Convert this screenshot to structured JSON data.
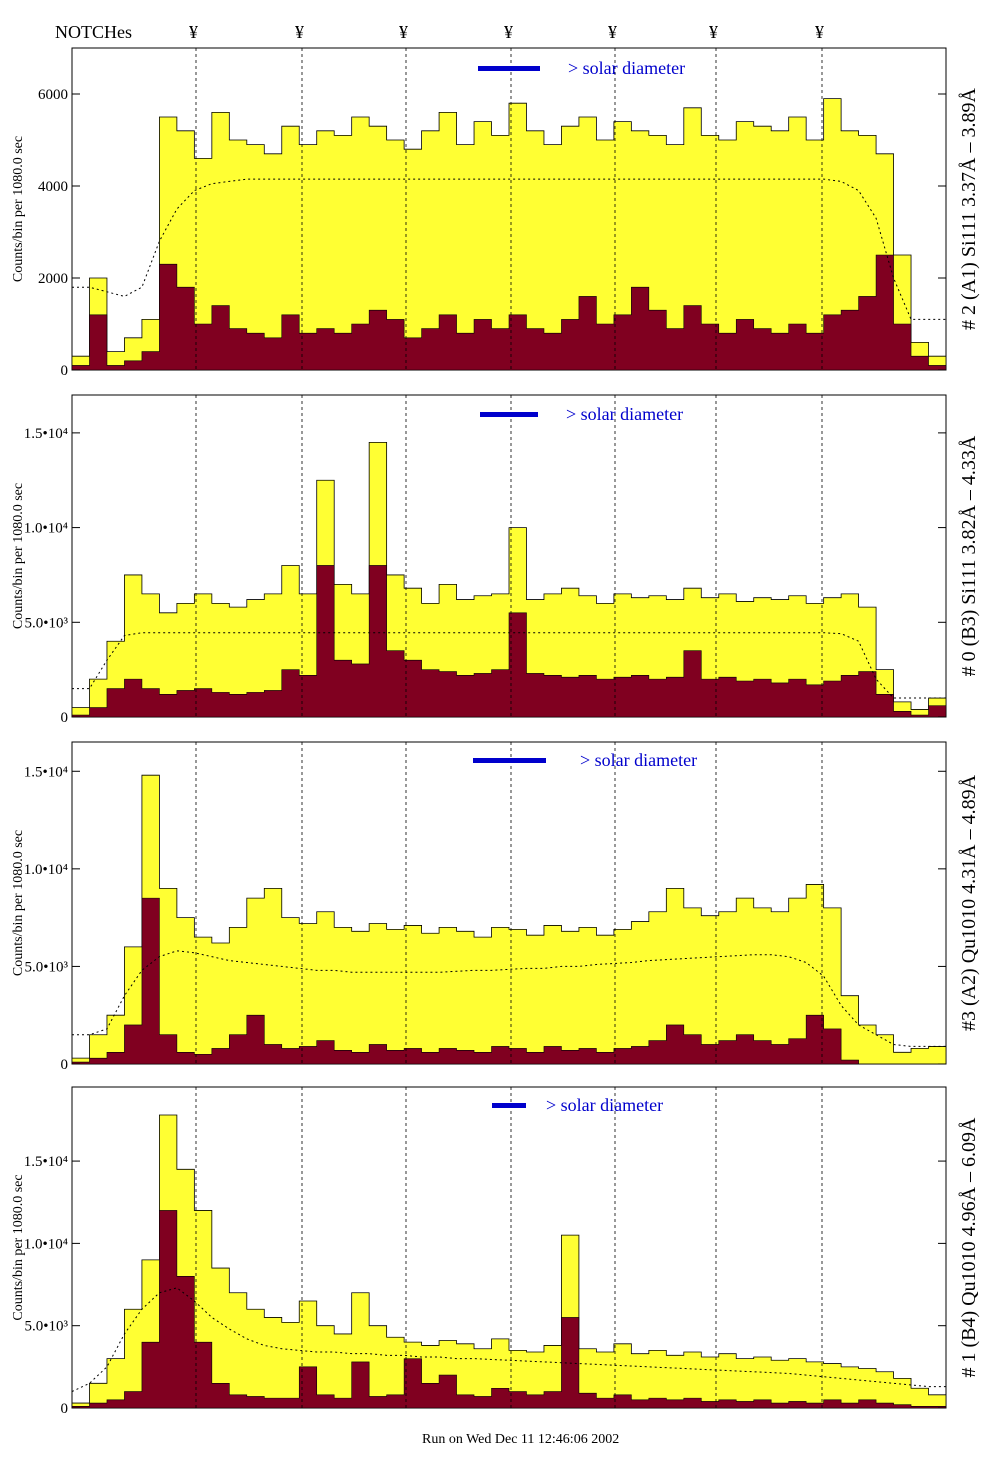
{
  "header": {
    "notch_label": "NOTCHes",
    "notch_symbol": "¥",
    "notch_count": 7
  },
  "footer": {
    "run_text": "Run on Wed Dec 11 12:46:06 2002"
  },
  "colors": {
    "fill_total": "#ffff33",
    "fill_sub": "#800020",
    "stroke": "#000000",
    "accent": "#0000cc"
  },
  "chart_data": [
    {
      "type": "area",
      "panel_title": "# 2 (A1) Si111  3.37Å – 3.89Å",
      "ylabel": "Counts/bin per   1080.0 sec",
      "solar_label": "> solar diameter",
      "yticks": [
        {
          "label": "0",
          "value": 0
        },
        {
          "label": "2000",
          "value": 2000
        },
        {
          "label": "4000",
          "value": 4000
        },
        {
          "label": "6000",
          "value": 6000
        }
      ],
      "ylim": [
        0,
        7000
      ],
      "x": [
        0,
        0.02,
        0.04,
        0.06,
        0.08,
        0.1,
        0.12,
        0.14,
        0.16,
        0.18,
        0.2,
        0.22,
        0.24,
        0.26,
        0.28,
        0.3,
        0.32,
        0.34,
        0.36,
        0.38,
        0.4,
        0.42,
        0.44,
        0.46,
        0.48,
        0.5,
        0.52,
        0.54,
        0.56,
        0.58,
        0.6,
        0.62,
        0.64,
        0.66,
        0.68,
        0.7,
        0.72,
        0.74,
        0.76,
        0.78,
        0.8,
        0.82,
        0.84,
        0.86,
        0.88,
        0.9,
        0.92,
        0.94,
        0.96,
        0.98,
        1.0
      ],
      "series": [
        {
          "name": "total",
          "values": [
            300,
            2000,
            400,
            700,
            1100,
            5500,
            5200,
            4600,
            5600,
            5000,
            4900,
            4700,
            5300,
            4900,
            5200,
            5100,
            5500,
            5300,
            5000,
            4800,
            5200,
            5600,
            4900,
            5400,
            5100,
            5800,
            5200,
            4900,
            5300,
            5500,
            5000,
            5400,
            5200,
            5100,
            4900,
            5700,
            5100,
            5000,
            5400,
            5300,
            5200,
            5500,
            5000,
            5900,
            5200,
            5100,
            4700,
            2500,
            600,
            300,
            0
          ]
        },
        {
          "name": "sub",
          "values": [
            100,
            1200,
            100,
            200,
            400,
            2300,
            1800,
            1000,
            1400,
            900,
            800,
            700,
            1200,
            800,
            900,
            800,
            1000,
            1300,
            1100,
            700,
            900,
            1200,
            800,
            1100,
            900,
            1200,
            900,
            800,
            1100,
            1600,
            1000,
            1200,
            1800,
            1300,
            900,
            1400,
            1000,
            800,
            1100,
            900,
            800,
            1000,
            800,
            1200,
            1300,
            1600,
            2500,
            1000,
            300,
            100,
            0
          ]
        },
        {
          "name": "model",
          "values": [
            1800,
            1800,
            1700,
            1600,
            1800,
            2800,
            3500,
            3900,
            4050,
            4100,
            4150,
            4150,
            4150,
            4150,
            4150,
            4150,
            4150,
            4150,
            4150,
            4150,
            4150,
            4150,
            4150,
            4150,
            4150,
            4150,
            4150,
            4150,
            4150,
            4150,
            4150,
            4150,
            4150,
            4150,
            4150,
            4150,
            4150,
            4150,
            4150,
            4150,
            4150,
            4150,
            4150,
            4150,
            4100,
            3900,
            3300,
            2000,
            1100,
            1100,
            1100
          ]
        }
      ]
    },
    {
      "type": "area",
      "panel_title": "# 0 (B3) Si111  3.82Å – 4.33Å",
      "ylabel": "Counts/bin per   1080.0 sec",
      "solar_label": "> solar diameter",
      "yticks": [
        {
          "label": "0",
          "value": 0
        },
        {
          "label": "5.0•10³",
          "value": 5000
        },
        {
          "label": "1.0•10⁴",
          "value": 10000
        },
        {
          "label": "1.5•10⁴",
          "value": 15000
        }
      ],
      "ylim": [
        0,
        17000
      ],
      "x": [
        0,
        0.02,
        0.04,
        0.06,
        0.08,
        0.1,
        0.12,
        0.14,
        0.16,
        0.18,
        0.2,
        0.22,
        0.24,
        0.26,
        0.28,
        0.3,
        0.32,
        0.34,
        0.36,
        0.38,
        0.4,
        0.42,
        0.44,
        0.46,
        0.48,
        0.5,
        0.52,
        0.54,
        0.56,
        0.58,
        0.6,
        0.62,
        0.64,
        0.66,
        0.68,
        0.7,
        0.72,
        0.74,
        0.76,
        0.78,
        0.8,
        0.82,
        0.84,
        0.86,
        0.88,
        0.9,
        0.92,
        0.94,
        0.96,
        0.98,
        1.0
      ],
      "series": [
        {
          "name": "total",
          "values": [
            500,
            2000,
            4000,
            7500,
            6500,
            5500,
            6000,
            6500,
            6000,
            5800,
            6200,
            6500,
            8000,
            6500,
            12500,
            7000,
            6500,
            14500,
            7500,
            6800,
            6000,
            7000,
            6200,
            6400,
            6500,
            10000,
            6200,
            6500,
            6800,
            6400,
            6000,
            6500,
            6300,
            6400,
            6200,
            6800,
            6300,
            6500,
            6100,
            6300,
            6200,
            6400,
            6000,
            6300,
            6500,
            5800,
            2500,
            800,
            400,
            1000,
            0
          ]
        },
        {
          "name": "sub",
          "values": [
            100,
            500,
            1500,
            2000,
            1500,
            1200,
            1400,
            1500,
            1300,
            1200,
            1300,
            1400,
            2500,
            2200,
            8000,
            3000,
            2800,
            8000,
            3500,
            3000,
            2500,
            2400,
            2200,
            2300,
            2500,
            5500,
            2300,
            2200,
            2100,
            2200,
            2000,
            2100,
            2200,
            2000,
            2100,
            3500,
            2000,
            2100,
            1900,
            2000,
            1800,
            2000,
            1700,
            1900,
            2200,
            2400,
            1200,
            300,
            100,
            600,
            0
          ]
        },
        {
          "name": "model",
          "values": [
            1500,
            1500,
            3000,
            4300,
            4450,
            4450,
            4450,
            4450,
            4450,
            4450,
            4450,
            4450,
            4450,
            4450,
            4450,
            4450,
            4450,
            4450,
            4450,
            4450,
            4450,
            4450,
            4450,
            4450,
            4450,
            4450,
            4450,
            4450,
            4450,
            4450,
            4450,
            4450,
            4450,
            4450,
            4450,
            4450,
            4450,
            4450,
            4450,
            4450,
            4450,
            4450,
            4450,
            4450,
            4400,
            4000,
            2000,
            1000,
            1000,
            1000,
            1000
          ]
        }
      ]
    },
    {
      "type": "area",
      "panel_title": "#3 (A2) Qu1010  4.31Å – 4.89Å",
      "ylabel": "Counts/bin per   1080.0 sec",
      "solar_label": "> solar diameter",
      "yticks": [
        {
          "label": "0",
          "value": 0
        },
        {
          "label": "5.0•10³",
          "value": 5000
        },
        {
          "label": "1.0•10⁴",
          "value": 10000
        },
        {
          "label": "1.5•10⁴",
          "value": 15000
        }
      ],
      "ylim": [
        0,
        16500
      ],
      "x": [
        0,
        0.02,
        0.04,
        0.06,
        0.08,
        0.1,
        0.12,
        0.14,
        0.16,
        0.18,
        0.2,
        0.22,
        0.24,
        0.26,
        0.28,
        0.3,
        0.32,
        0.34,
        0.36,
        0.38,
        0.4,
        0.42,
        0.44,
        0.46,
        0.48,
        0.5,
        0.52,
        0.54,
        0.56,
        0.58,
        0.6,
        0.62,
        0.64,
        0.66,
        0.68,
        0.7,
        0.72,
        0.74,
        0.76,
        0.78,
        0.8,
        0.82,
        0.84,
        0.86,
        0.88,
        0.9,
        0.92,
        0.94,
        0.96,
        0.98,
        1.0
      ],
      "series": [
        {
          "name": "total",
          "values": [
            300,
            1500,
            2500,
            6000,
            14800,
            9000,
            7500,
            6500,
            6200,
            7000,
            8500,
            9000,
            7500,
            7200,
            7800,
            7000,
            6800,
            7200,
            6900,
            7100,
            6700,
            7000,
            6800,
            6500,
            7000,
            6900,
            6600,
            7100,
            6800,
            7000,
            6600,
            6900,
            7300,
            7800,
            9000,
            8000,
            7600,
            7800,
            8500,
            8000,
            7800,
            8500,
            9200,
            8000,
            3500,
            2000,
            1500,
            600,
            800,
            900,
            0
          ]
        },
        {
          "name": "sub",
          "values": [
            100,
            300,
            600,
            2000,
            8500,
            1500,
            600,
            500,
            800,
            1500,
            2500,
            1000,
            800,
            900,
            1200,
            700,
            600,
            1000,
            700,
            800,
            600,
            800,
            700,
            600,
            900,
            800,
            600,
            900,
            700,
            800,
            600,
            800,
            900,
            1200,
            2000,
            1500,
            1000,
            1200,
            1500,
            1200,
            1000,
            1300,
            2500,
            1800,
            200,
            0,
            0,
            0,
            0,
            0,
            0
          ]
        },
        {
          "name": "model",
          "values": [
            1500,
            1500,
            1800,
            3500,
            4800,
            5500,
            5800,
            5700,
            5500,
            5300,
            5200,
            5100,
            5000,
            4900,
            4800,
            4800,
            4700,
            4700,
            4700,
            4700,
            4700,
            4700,
            4750,
            4800,
            4800,
            4850,
            4900,
            4900,
            5000,
            5000,
            5100,
            5150,
            5200,
            5300,
            5350,
            5400,
            5450,
            5500,
            5550,
            5600,
            5600,
            5500,
            5200,
            4500,
            3000,
            2000,
            1500,
            1000,
            900,
            900,
            900
          ]
        }
      ]
    },
    {
      "type": "area",
      "panel_title": "# 1 (B4) Qu1010 4.96Å – 6.09Å",
      "ylabel": "Counts/bin per   1080.0 sec",
      "solar_label": "> solar diameter",
      "yticks": [
        {
          "label": "0",
          "value": 0
        },
        {
          "label": "5.0•10³",
          "value": 5000
        },
        {
          "label": "1.0•10⁴",
          "value": 10000
        },
        {
          "label": "1.5•10⁴",
          "value": 15000
        }
      ],
      "ylim": [
        0,
        19500
      ],
      "x": [
        0,
        0.02,
        0.04,
        0.06,
        0.08,
        0.1,
        0.12,
        0.14,
        0.16,
        0.18,
        0.2,
        0.22,
        0.24,
        0.26,
        0.28,
        0.3,
        0.32,
        0.34,
        0.36,
        0.38,
        0.4,
        0.42,
        0.44,
        0.46,
        0.48,
        0.5,
        0.52,
        0.54,
        0.56,
        0.58,
        0.6,
        0.62,
        0.64,
        0.66,
        0.68,
        0.7,
        0.72,
        0.74,
        0.76,
        0.78,
        0.8,
        0.82,
        0.84,
        0.86,
        0.88,
        0.9,
        0.92,
        0.94,
        0.96,
        0.98,
        1.0
      ],
      "series": [
        {
          "name": "total",
          "values": [
            300,
            1500,
            3000,
            6000,
            9000,
            17800,
            14500,
            12000,
            8500,
            7000,
            6000,
            5500,
            5200,
            6500,
            5000,
            4500,
            7000,
            5000,
            4300,
            4000,
            3800,
            4100,
            3900,
            3600,
            4200,
            3500,
            3400,
            3800,
            10500,
            3600,
            3400,
            3900,
            3300,
            3500,
            3200,
            3400,
            3100,
            3300,
            3000,
            3100,
            2900,
            3000,
            2800,
            2700,
            2500,
            2400,
            2200,
            1800,
            1200,
            800,
            0
          ]
        },
        {
          "name": "sub",
          "values": [
            100,
            300,
            500,
            1000,
            4000,
            12000,
            8000,
            4000,
            1500,
            800,
            700,
            600,
            600,
            2500,
            800,
            600,
            2800,
            700,
            800,
            3000,
            1500,
            2000,
            800,
            700,
            1200,
            1000,
            800,
            1000,
            5500,
            900,
            600,
            800,
            500,
            600,
            500,
            600,
            400,
            500,
            400,
            500,
            300,
            400,
            300,
            500,
            300,
            500,
            300,
            200,
            100,
            100,
            0
          ]
        },
        {
          "name": "model",
          "values": [
            1000,
            1500,
            2500,
            4500,
            6000,
            7000,
            7300,
            6500,
            5500,
            4800,
            4200,
            3800,
            3600,
            3500,
            3400,
            3400,
            3300,
            3300,
            3200,
            3200,
            3100,
            3100,
            3000,
            3000,
            2950,
            2900,
            2850,
            2800,
            2750,
            2700,
            2650,
            2600,
            2550,
            2500,
            2450,
            2400,
            2350,
            2300,
            2250,
            2200,
            2150,
            2100,
            2000,
            1900,
            1800,
            1700,
            1600,
            1500,
            1400,
            1300,
            1300
          ]
        }
      ]
    }
  ]
}
